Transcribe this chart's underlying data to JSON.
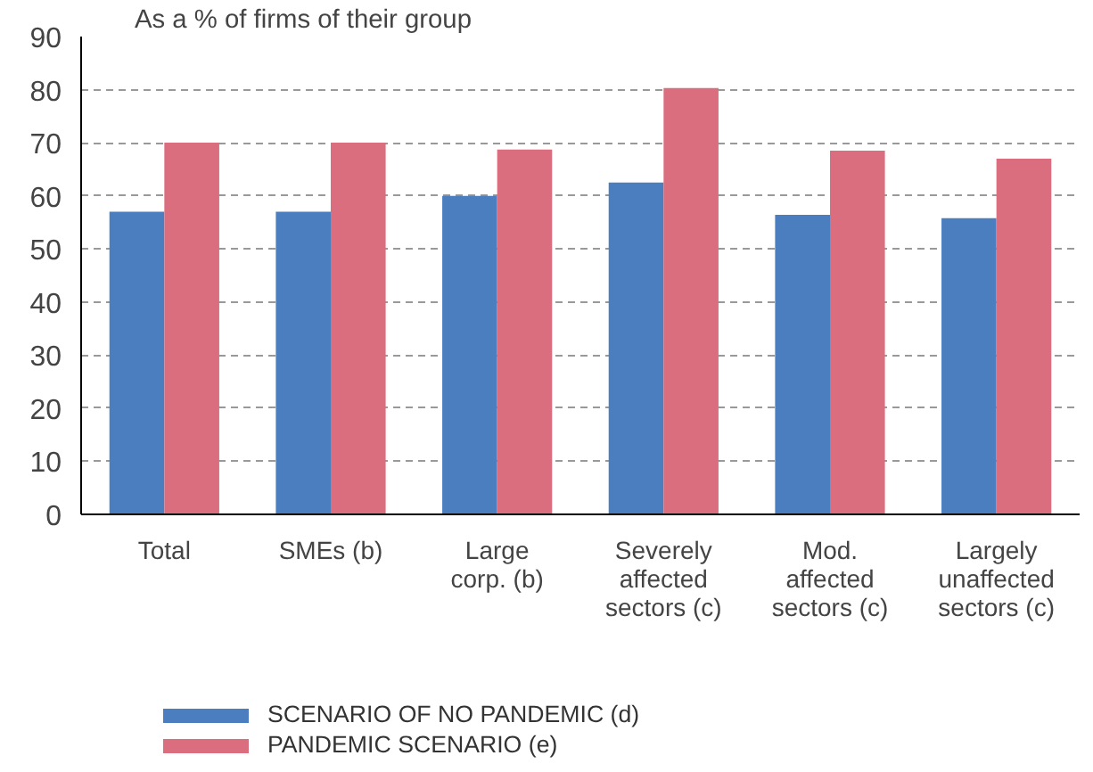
{
  "chart_data": {
    "type": "bar",
    "ylabel": "As a % of firms of their group",
    "categories": [
      "Total",
      "SMEs (b)",
      "Large\ncorp. (b)",
      "Severely\naffected\nsectors (c)",
      "Mod.\naffected\nsectors (c)",
      "Largely\nunaffected\nsectors (c)"
    ],
    "series": [
      {
        "name": "SCENARIO OF NO PANDEMIC (d)",
        "color": "#4a7ebf",
        "values": [
          57,
          57,
          60,
          62.5,
          56.4,
          55.8
        ]
      },
      {
        "name": "PANDEMIC SCENARIO (e)",
        "color": "#db6e7e",
        "values": [
          70,
          70,
          68.7,
          80.3,
          68.5,
          67
        ]
      }
    ],
    "ylim": [
      0,
      90
    ],
    "yticks": [
      0,
      10,
      20,
      30,
      40,
      50,
      60,
      70,
      80,
      90
    ],
    "grid": "y",
    "legend": "bottom"
  }
}
